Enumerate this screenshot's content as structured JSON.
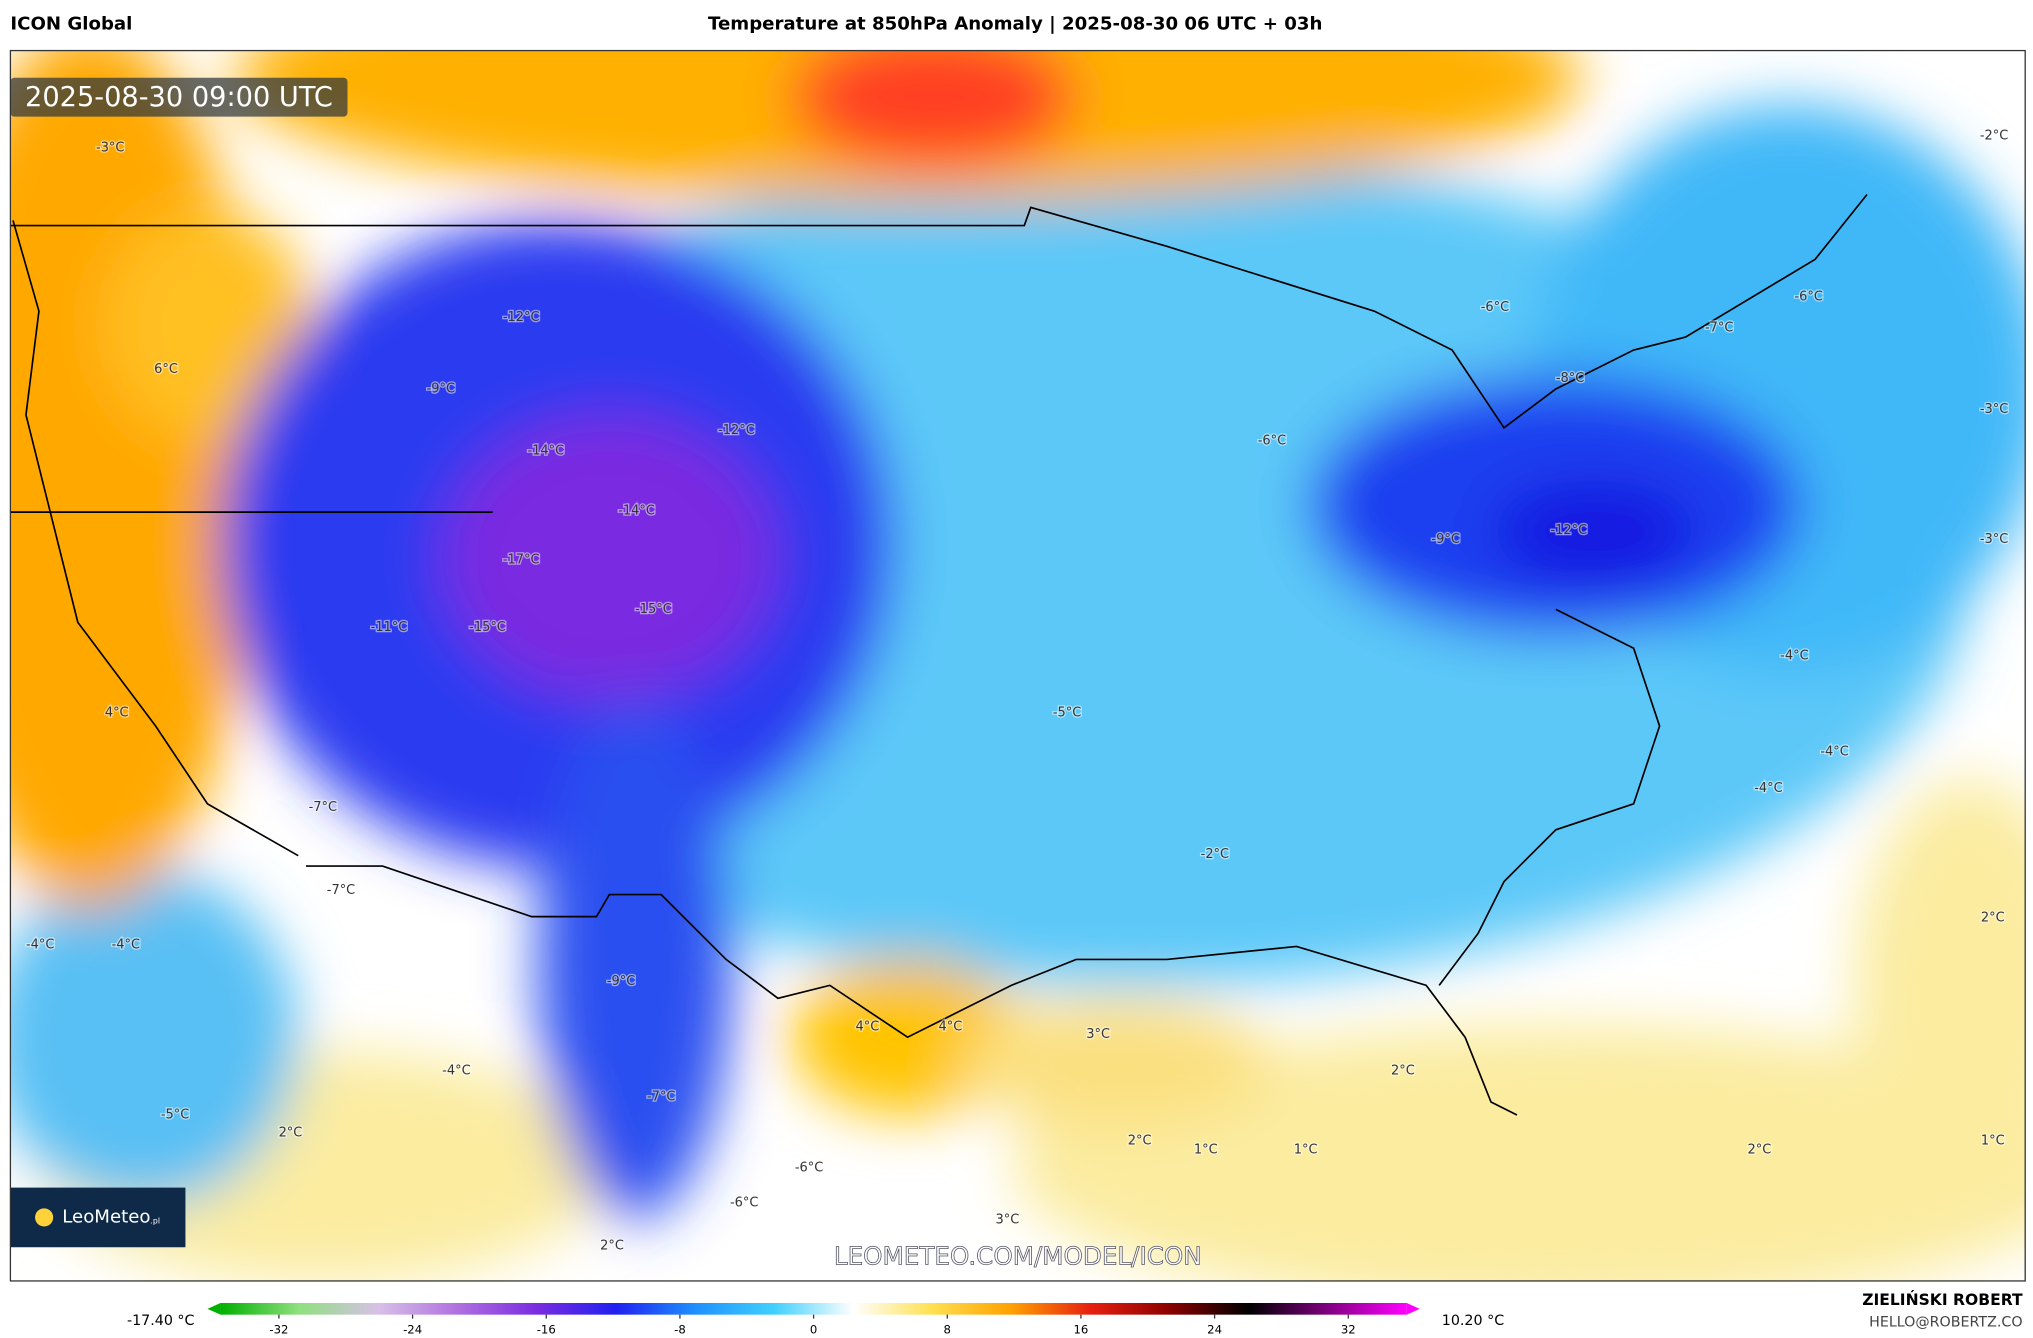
{
  "header": {
    "model": "ICON Global",
    "title": "Temperature at 850hPa Anomaly | 2025-08-30 06 UTC + 03h"
  },
  "timestamp": "2025-08-30 09:00 UTC",
  "map_labels": [
    "-3°C",
    "-12°C",
    "6°C",
    "-9°C",
    "-14°C",
    "-12°C",
    "-14°C",
    "-17°C",
    "-15°C",
    "-11°C",
    "-15°C",
    "4°C",
    "-5°C",
    "-7°C",
    "-7°C",
    "-4°C",
    "-4°C",
    "-9°C",
    "4°C",
    "4°C",
    "3°C",
    "2°C",
    "-4°C",
    "-7°C",
    "-5°C",
    "2°C",
    "2°C",
    "1°C",
    "1°C",
    "2°C",
    "1°C",
    "-6°C",
    "-6°C",
    "3°C",
    "2°C",
    "-6°C",
    "-7°C",
    "-6°C",
    "-8°C",
    "-6°C",
    "-9°C",
    "-12°C",
    "-4°C",
    "-4°C",
    "-4°C",
    "-2°C",
    "2°C",
    "-2°C",
    "-3°C",
    "-3°C"
  ],
  "logo": {
    "name": "LeoMeteo",
    "suffix": ".pl"
  },
  "watermark": "LEOMETEO.COM/MODEL/ICON",
  "author": {
    "name": "ZIELIŃSKI ROBERT",
    "email": "HELLO@ROBERTZ.CO"
  },
  "colorbar": {
    "min_label": "-17.40 °C",
    "max_label": "10.20 °C",
    "lim": [
      -35.5,
      35.5
    ],
    "ticks": [
      -32,
      -24,
      -16,
      -8,
      0,
      8,
      16,
      24,
      32
    ],
    "colors": [
      "#00b000",
      "#90e080",
      "#d8c0e8",
      "#b070e0",
      "#7a2ce0",
      "#2020f0",
      "#1e90ff",
      "#40d0ff",
      "#ffffff",
      "#ffe050",
      "#ffa000",
      "#e62010",
      "#8b0000",
      "#000000",
      "#800080",
      "#ff00ff"
    ]
  }
}
